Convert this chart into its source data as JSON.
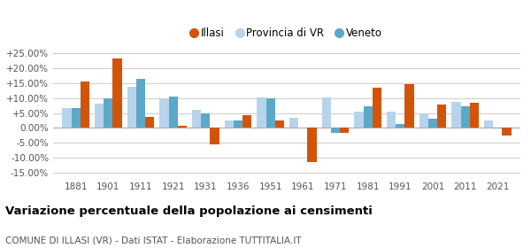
{
  "years": [
    1881,
    1901,
    1911,
    1921,
    1931,
    1936,
    1951,
    1961,
    1971,
    1981,
    1991,
    2001,
    2011,
    2021
  ],
  "illasi": [
    15.5,
    23.5,
    3.8,
    0.8,
    -5.5,
    4.3,
    2.5,
    -11.5,
    -1.5,
    13.5,
    14.8,
    7.8,
    8.5,
    -2.5
  ],
  "provincia_vr": [
    6.8,
    8.2,
    13.8,
    9.8,
    6.0,
    2.5,
    10.2,
    3.5,
    10.2,
    5.5,
    5.5,
    4.8,
    8.8,
    2.5
  ],
  "veneto": [
    6.8,
    10.0,
    16.5,
    10.5,
    5.0,
    2.5,
    10.0,
    null,
    -1.5,
    7.2,
    1.2,
    3.2,
    7.2,
    -0.3
  ],
  "color_illasi": "#d2540a",
  "color_provincia": "#b8d4ec",
  "color_veneto": "#5ba8c8",
  "title": "Variazione percentuale della popolazione ai censimenti",
  "subtitle": "COMUNE DI ILLASI (VR) - Dati ISTAT - Elaborazione TUTTITALIA.IT",
  "ylim": [
    -17,
    28
  ],
  "yticks": [
    -15,
    -10,
    -5,
    0,
    5,
    10,
    15,
    20,
    25
  ],
  "legend_labels": [
    "Illasi",
    "Provincia di VR",
    "Veneto"
  ]
}
